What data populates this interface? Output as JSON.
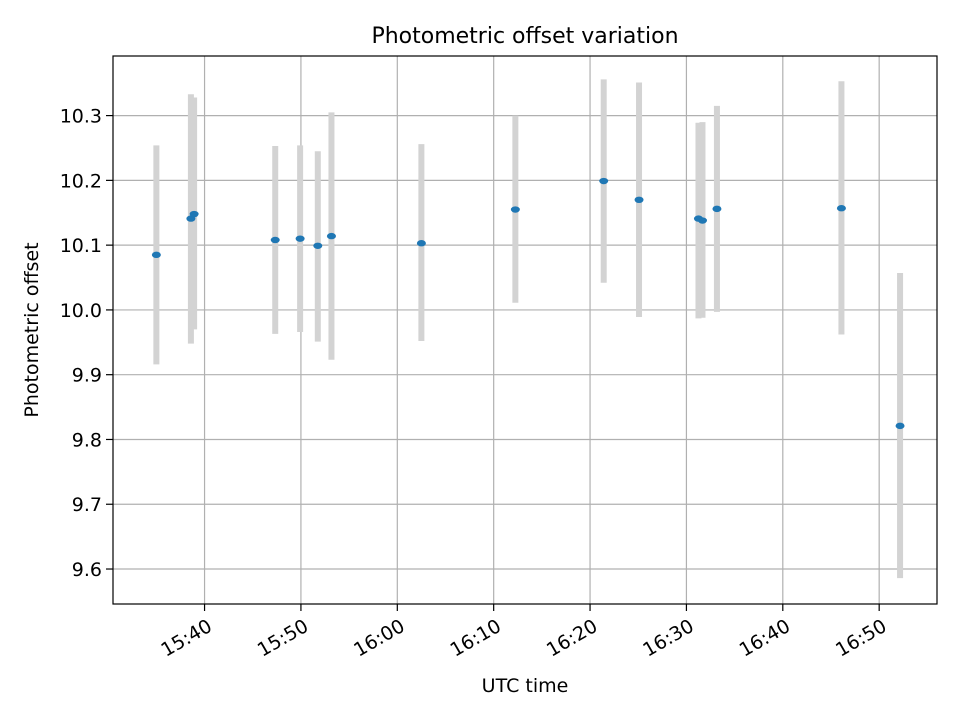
{
  "chart_data": {
    "type": "scatter",
    "title": "Photometric offset variation",
    "xlabel": "UTC time",
    "ylabel": "Photometric offset",
    "xlim": [
      "15:30:30",
      "16:56:00"
    ],
    "ylim": [
      9.546,
      10.392
    ],
    "grid": true,
    "x_ticks": [
      "15:40",
      "15:50",
      "16:00",
      "16:10",
      "16:20",
      "16:30",
      "16:40",
      "16:50"
    ],
    "y_ticks": [
      "9.6",
      "9.7",
      "9.8",
      "9.9",
      "10.0",
      "10.1",
      "10.2",
      "10.3"
    ],
    "points": [
      {
        "time": "15:35:00",
        "value": 10.085,
        "err_low": 9.916,
        "err_high": 10.254
      },
      {
        "time": "15:38:35",
        "value": 10.141,
        "err_low": 9.948,
        "err_high": 10.333
      },
      {
        "time": "15:38:55",
        "value": 10.148,
        "err_low": 9.97,
        "err_high": 10.328
      },
      {
        "time": "15:47:20",
        "value": 10.108,
        "err_low": 9.963,
        "err_high": 10.253
      },
      {
        "time": "15:49:55",
        "value": 10.11,
        "err_low": 9.966,
        "err_high": 10.254
      },
      {
        "time": "15:51:45",
        "value": 10.099,
        "err_low": 9.951,
        "err_high": 10.245
      },
      {
        "time": "15:53:10",
        "value": 10.114,
        "err_low": 9.923,
        "err_high": 10.305
      },
      {
        "time": "16:02:30",
        "value": 10.103,
        "err_low": 9.952,
        "err_high": 10.256
      },
      {
        "time": "16:12:15",
        "value": 10.155,
        "err_low": 10.011,
        "err_high": 10.3
      },
      {
        "time": "16:21:25",
        "value": 10.199,
        "err_low": 10.042,
        "err_high": 10.356
      },
      {
        "time": "16:25:05",
        "value": 10.17,
        "err_low": 9.989,
        "err_high": 10.351
      },
      {
        "time": "16:31:15",
        "value": 10.141,
        "err_low": 9.987,
        "err_high": 10.289
      },
      {
        "time": "16:31:40",
        "value": 10.138,
        "err_low": 9.988,
        "err_high": 10.29
      },
      {
        "time": "16:33:10",
        "value": 10.156,
        "err_low": 9.997,
        "err_high": 10.315
      },
      {
        "time": "16:46:05",
        "value": 10.157,
        "err_low": 9.962,
        "err_high": 10.353
      },
      {
        "time": "16:52:10",
        "value": 9.821,
        "err_low": 9.586,
        "err_high": 10.057
      }
    ],
    "colors": {
      "marker": "#1f77b4",
      "errorbar": "#d3d3d3",
      "grid": "#b0b0b0",
      "axes": "#000000"
    }
  }
}
